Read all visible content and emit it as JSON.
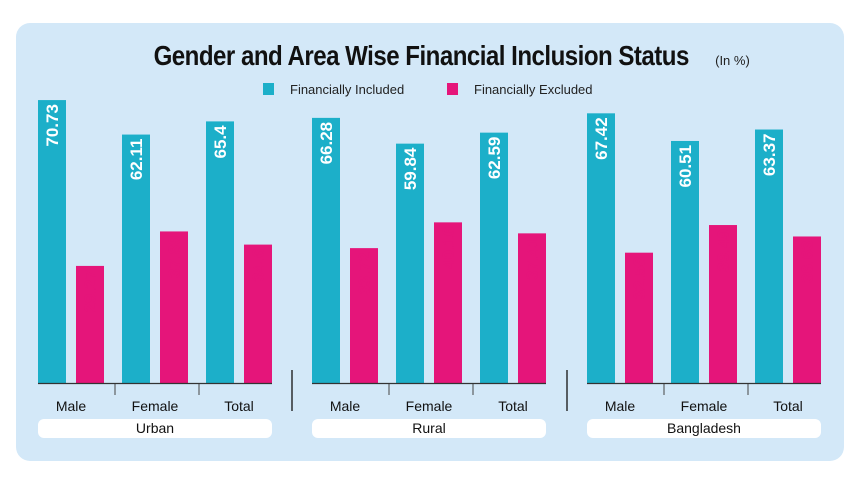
{
  "header": {
    "title": "Gender and Area Wise Financial Inclusion Status",
    "unit": "(In %)"
  },
  "colors": {
    "included": "#1cafc9",
    "excluded": "#e5157a",
    "panel": "#d3e8f8"
  },
  "chart_data": {
    "type": "bar",
    "title": "Gender and Area Wise Financial Inclusion Status",
    "subtitle": "(In %)",
    "ylim": [
      0,
      100
    ],
    "grid": false,
    "legend_position": "top-center",
    "series": [
      {
        "name": "Financially Included",
        "color": "#1cafc9"
      },
      {
        "name": "Financially Excluded",
        "color": "#e5157a"
      }
    ],
    "groups": [
      {
        "name": "Urban",
        "categories": [
          {
            "label": "Male",
            "values": [
              70.73,
              29.27
            ]
          },
          {
            "label": "Female",
            "values": [
              62.11,
              37.89
            ]
          },
          {
            "label": "Total",
            "values": [
              65.4,
              34.6
            ]
          }
        ]
      },
      {
        "name": "Rural",
        "categories": [
          {
            "label": "Male",
            "values": [
              66.28,
              33.72
            ]
          },
          {
            "label": "Female",
            "values": [
              59.84,
              40.16
            ]
          },
          {
            "label": "Total",
            "values": [
              62.59,
              37.41
            ]
          }
        ]
      },
      {
        "name": "Bangladesh",
        "categories": [
          {
            "label": "Male",
            "values": [
              67.42,
              32.58
            ]
          },
          {
            "label": "Female",
            "values": [
              60.51,
              39.49
            ]
          },
          {
            "label": "Total",
            "values": [
              63.37,
              36.63
            ]
          }
        ]
      }
    ]
  }
}
